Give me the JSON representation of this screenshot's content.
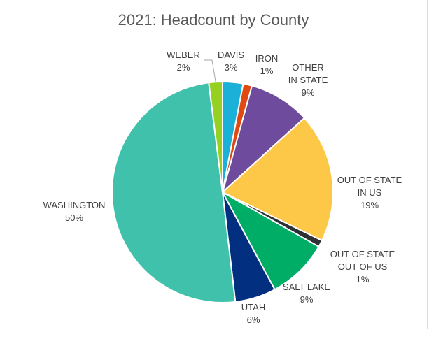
{
  "chart_data": {
    "type": "pie",
    "title": "2021: Headcount by County",
    "slices": [
      {
        "label": [
          "DAVIS"
        ],
        "value": 3,
        "pct": "3%",
        "color": "#1ab0d8"
      },
      {
        "label": [
          "IRON"
        ],
        "value": 1.3,
        "pct": "1%",
        "color": "#e04a12"
      },
      {
        "label": [
          "OTHER",
          "IN STATE"
        ],
        "value": 9,
        "pct": "9%",
        "color": "#6e4b9c"
      },
      {
        "label": [
          "OUT OF STATE",
          "IN US"
        ],
        "value": 19,
        "pct": "19%",
        "color": "#fdc848"
      },
      {
        "label": [
          "OUT OF STATE",
          "OUT OF US"
        ],
        "value": 1,
        "pct": "1%",
        "color": "#2d3135"
      },
      {
        "label": [
          "SALT LAKE"
        ],
        "value": 9,
        "pct": "9%",
        "color": "#00ad66"
      },
      {
        "label": [
          "UTAH"
        ],
        "value": 6,
        "pct": "6%",
        "color": "#022f80"
      },
      {
        "label": [
          "WASHINGTON"
        ],
        "value": 50,
        "pct": "50%",
        "color": "#40c1ac"
      },
      {
        "label": [
          "WEBER"
        ],
        "value": 2,
        "pct": "2%",
        "color": "#96d022"
      }
    ]
  }
}
